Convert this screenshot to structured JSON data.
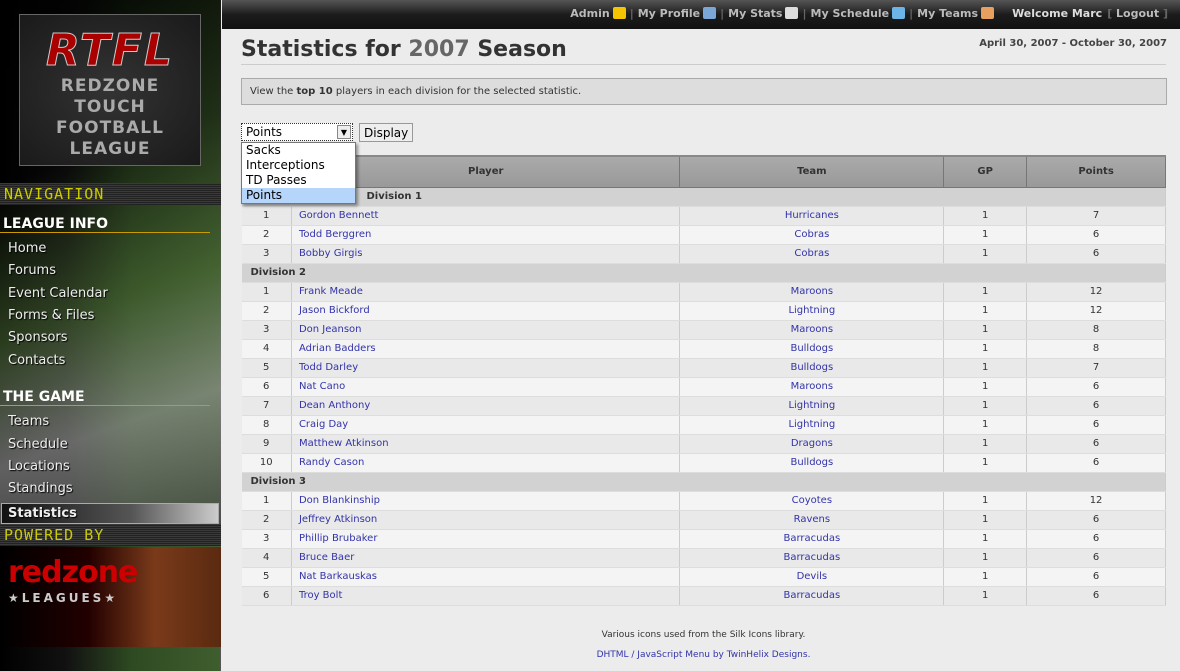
{
  "sidebar": {
    "logo_text": "RTFL",
    "logo_sub": [
      "REDZONE",
      "TOUCH",
      "FOOTBALL",
      "LEAGUE"
    ],
    "navigation_label": "NAVIGATION",
    "sections": [
      {
        "title": "LEAGUE INFO",
        "items": [
          "Home",
          "Forums",
          "Event Calendar",
          "Forms & Files",
          "Sponsors",
          "Contacts"
        ]
      },
      {
        "title": "THE GAME",
        "items": [
          "Teams",
          "Schedule",
          "Locations",
          "Standings",
          "Statistics"
        ]
      }
    ],
    "active_item": "Statistics",
    "powered_label": "POWERED BY",
    "powered_logo": "redzone",
    "powered_logo_sub": "★LEAGUES★"
  },
  "topbar": {
    "links": [
      {
        "label": "Admin",
        "icon": "star-icon",
        "color": "#f5c400"
      },
      {
        "label": "My Profile",
        "icon": "vcard-icon",
        "color": "#7aa7d8"
      },
      {
        "label": "My Stats",
        "icon": "calculator-icon",
        "color": "#ddd"
      },
      {
        "label": "My Schedule",
        "icon": "calendar-icon",
        "color": "#6cb4e8"
      },
      {
        "label": "My Teams",
        "icon": "group-icon",
        "color": "#e8a060"
      }
    ],
    "welcome": "Welcome Marc",
    "logout": "Logout"
  },
  "page": {
    "title_prefix": "Statistics for",
    "title_year": "2007",
    "title_suffix": "Season",
    "dates": "April 30, 2007 - October 30, 2007",
    "info_pre": "View the ",
    "info_bold": "top 10",
    "info_post": " players in each division for the selected statistic.",
    "select_value": "Points",
    "options": [
      "Sacks",
      "Interceptions",
      "TD Passes",
      "Points"
    ],
    "display_button": "Display"
  },
  "table": {
    "headers": [
      "",
      "Player",
      "Team",
      "GP",
      "Points"
    ],
    "divisions": [
      {
        "name": "Division 1",
        "rows": [
          [
            "1",
            "Gordon Bennett",
            "Hurricanes",
            "1",
            "7"
          ],
          [
            "2",
            "Todd Berggren",
            "Cobras",
            "1",
            "6"
          ],
          [
            "3",
            "Bobby Girgis",
            "Cobras",
            "1",
            "6"
          ]
        ]
      },
      {
        "name": "Division 2",
        "rows": [
          [
            "1",
            "Frank Meade",
            "Maroons",
            "1",
            "12"
          ],
          [
            "2",
            "Jason Bickford",
            "Lightning",
            "1",
            "12"
          ],
          [
            "3",
            "Don Jeanson",
            "Maroons",
            "1",
            "8"
          ],
          [
            "4",
            "Adrian Badders",
            "Bulldogs",
            "1",
            "8"
          ],
          [
            "5",
            "Todd Darley",
            "Bulldogs",
            "1",
            "7"
          ],
          [
            "6",
            "Nat Cano",
            "Maroons",
            "1",
            "6"
          ],
          [
            "7",
            "Dean Anthony",
            "Lightning",
            "1",
            "6"
          ],
          [
            "8",
            "Craig Day",
            "Lightning",
            "1",
            "6"
          ],
          [
            "9",
            "Matthew Atkinson",
            "Dragons",
            "1",
            "6"
          ],
          [
            "10",
            "Randy Cason",
            "Bulldogs",
            "1",
            "6"
          ]
        ]
      },
      {
        "name": "Division 3",
        "rows": [
          [
            "1",
            "Don Blankinship",
            "Coyotes",
            "1",
            "12"
          ],
          [
            "2",
            "Jeffrey Atkinson",
            "Ravens",
            "1",
            "6"
          ],
          [
            "3",
            "Phillip Brubaker",
            "Barracudas",
            "1",
            "6"
          ],
          [
            "4",
            "Bruce Baer",
            "Barracudas",
            "1",
            "6"
          ],
          [
            "5",
            "Nat Barkauskas",
            "Devils",
            "1",
            "6"
          ],
          [
            "6",
            "Troy Bolt",
            "Barracudas",
            "1",
            "6"
          ]
        ]
      }
    ]
  },
  "footer": {
    "line1": "Various icons used from the Silk Icons library.",
    "line2": "DHTML / JavaScript Menu by TwinHelix Designs."
  }
}
